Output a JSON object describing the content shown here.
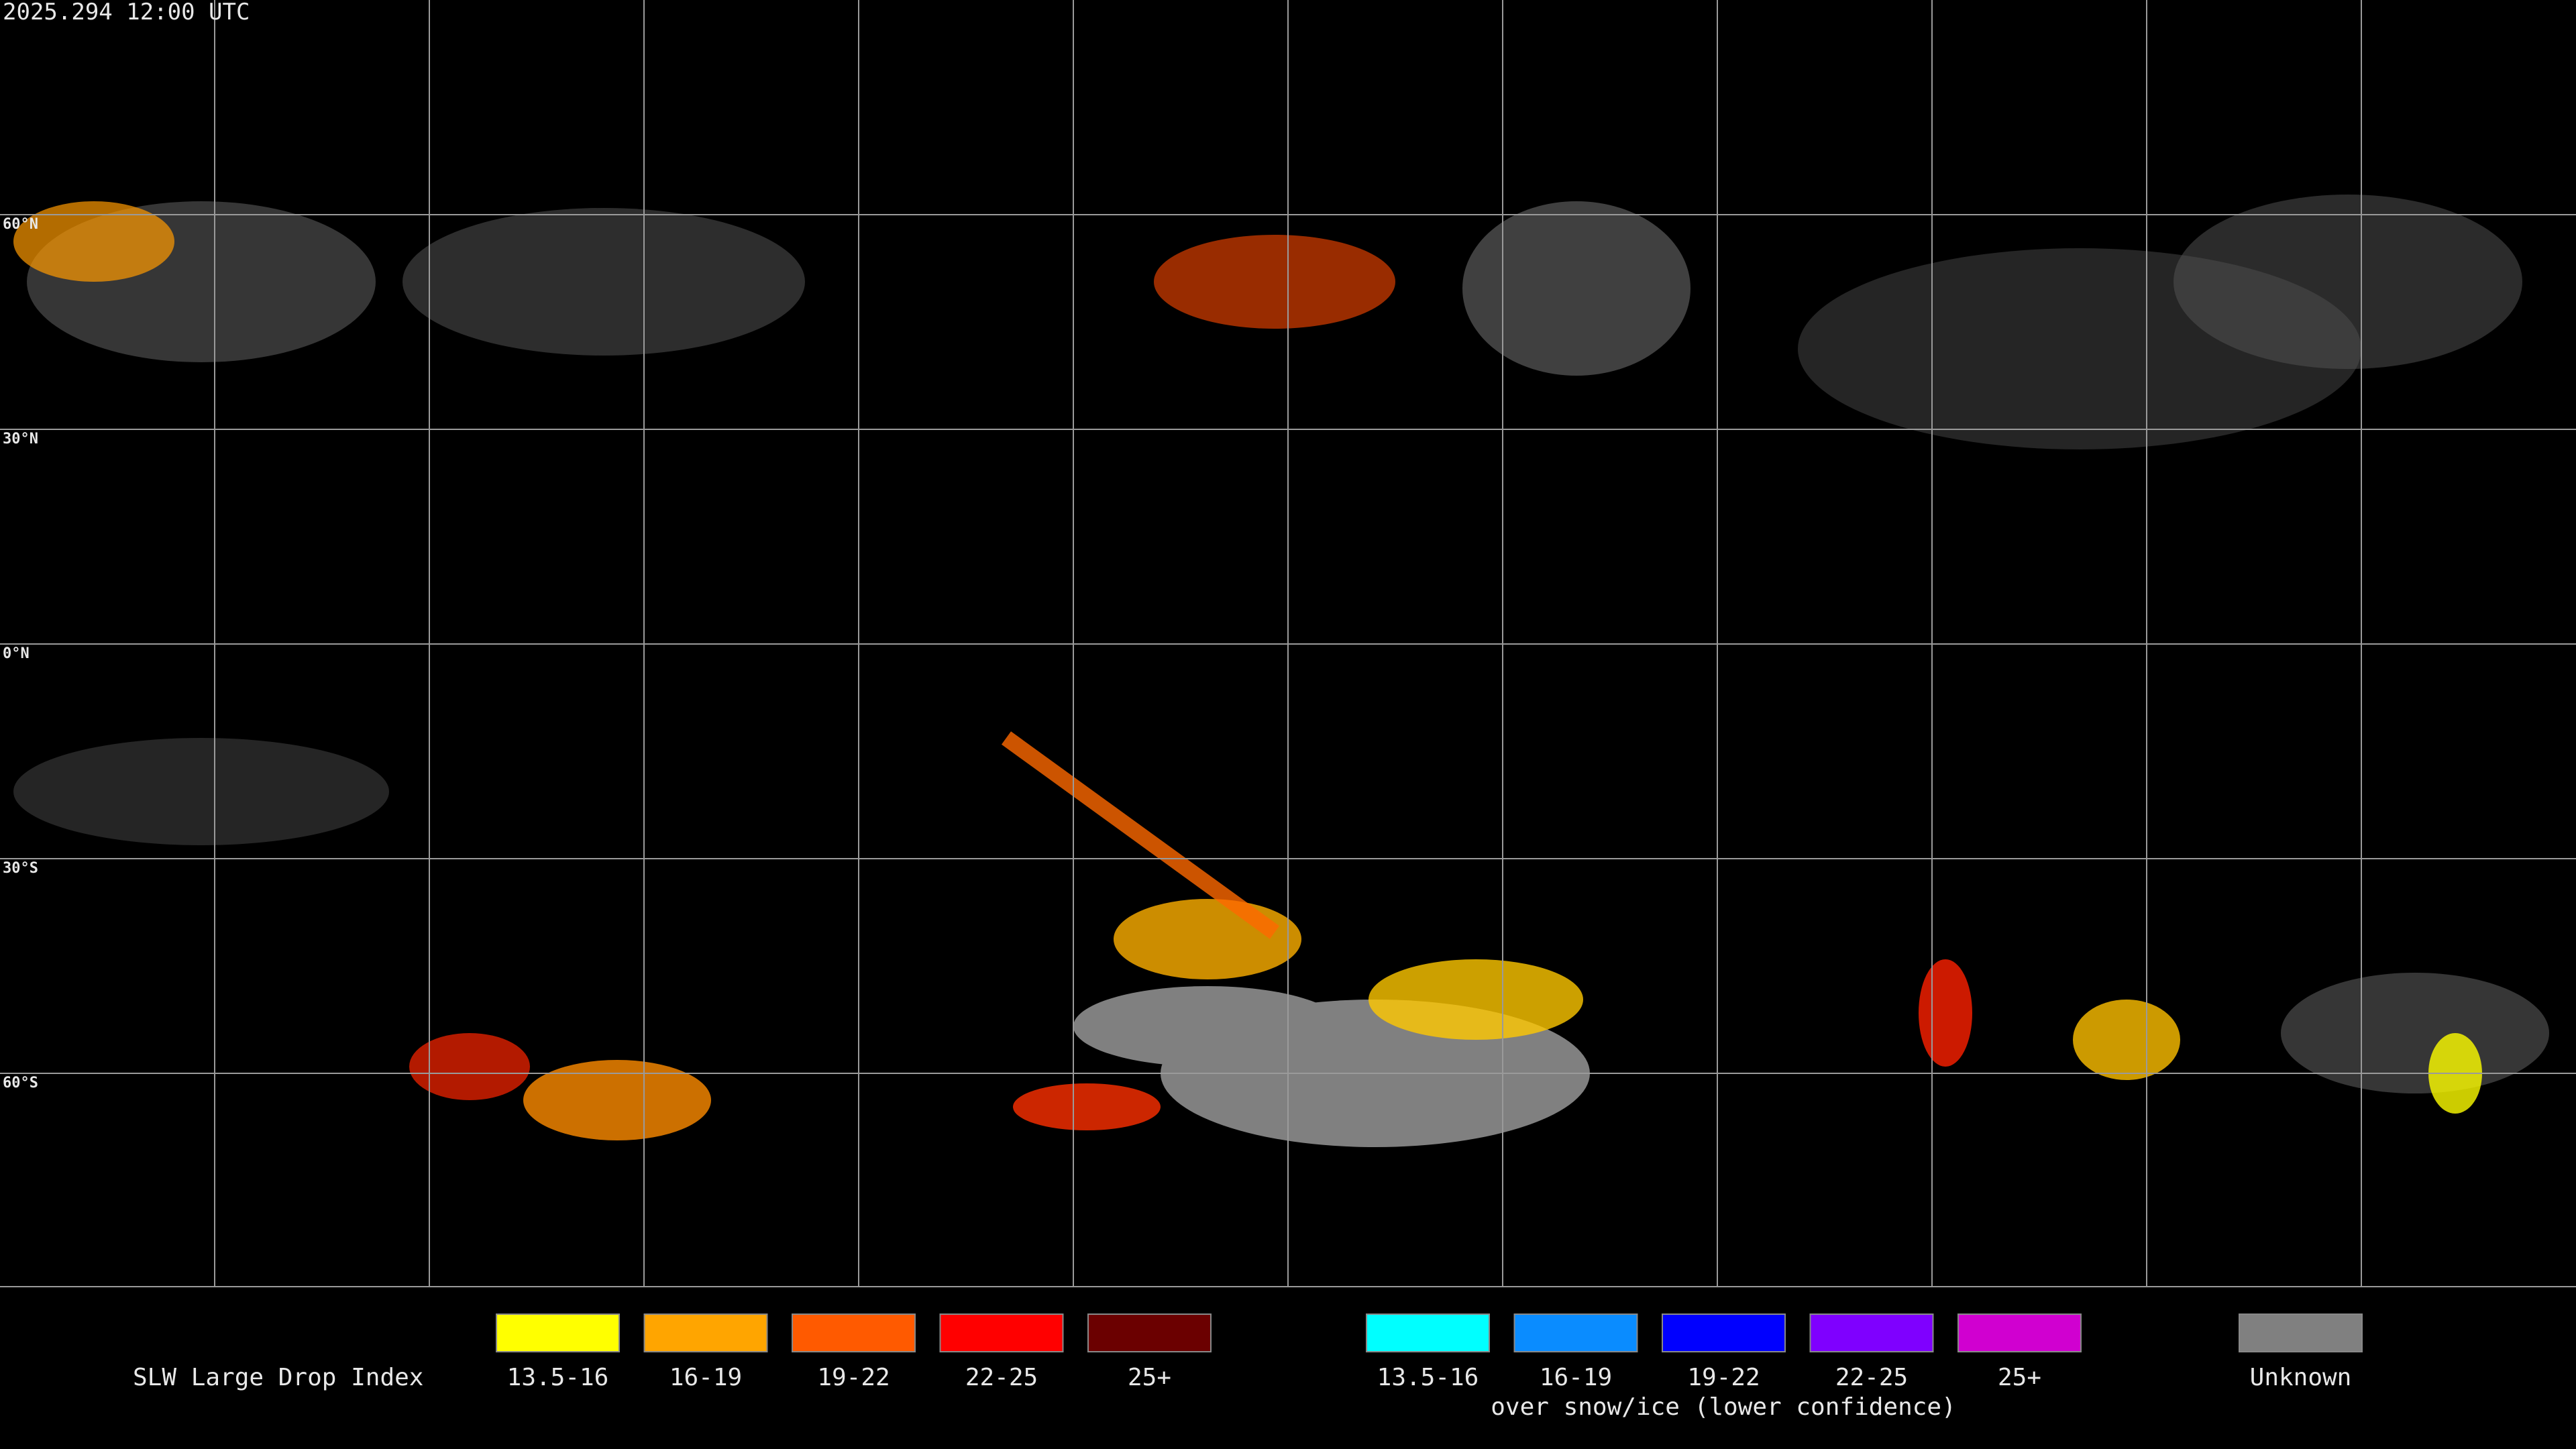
{
  "header": {
    "timestamp": "2025.294 12:00 UTC"
  },
  "map": {
    "latitude_labels": [
      "60°N",
      "30°N",
      "0°N",
      "30°S",
      "60°S"
    ]
  },
  "legend": {
    "title": "SLW Large Drop Index",
    "groups": [
      {
        "items": [
          {
            "label": "13.5-16",
            "color": "#ffff00"
          },
          {
            "label": "16-19",
            "color": "#ffa500"
          },
          {
            "label": "19-22",
            "color": "#ff5a00"
          },
          {
            "label": "22-25",
            "color": "#ff0000"
          },
          {
            "label": "25+",
            "color": "#6b0000"
          }
        ]
      },
      {
        "items": [
          {
            "label": "13.5-16",
            "color": "#00ffff"
          },
          {
            "label": "16-19",
            "color": "#0a8cff"
          },
          {
            "label": "19-22",
            "color": "#0000ff"
          },
          {
            "label": "22-25",
            "color": "#7f00ff"
          },
          {
            "label": "25+",
            "color": "#d000d0"
          }
        ],
        "note": "over snow/ice (lower confidence)"
      }
    ],
    "unknown": {
      "label": "Unknown",
      "color": "#808080"
    }
  }
}
